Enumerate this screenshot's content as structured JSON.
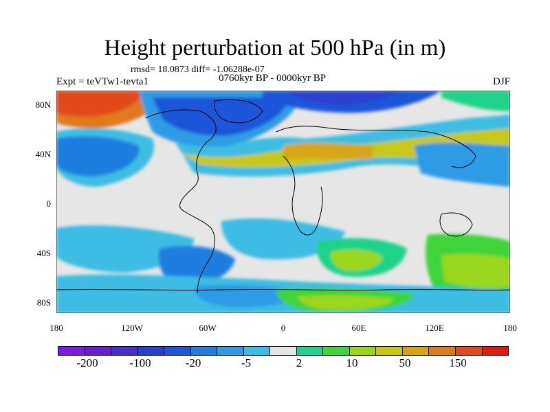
{
  "title": "Height perturbation at 500 hPa (in m)",
  "stats": "rmsd= 18.0873 diff= -1.06288e-07",
  "experiment": "Expt = teVTw1-tevta1",
  "period": "0760kyr BP - 0000kyr BP",
  "season": "DJF",
  "lat_ticks": [
    "80N",
    "40N",
    "0",
    "40S",
    "80S"
  ],
  "lon_ticks": [
    "180",
    "120W",
    "60W",
    "0",
    "60E",
    "120E",
    "180"
  ],
  "colorbar": {
    "colors": [
      "#7a1de0",
      "#6a1fd6",
      "#4a2fd0",
      "#2a3fcf",
      "#1f55d8",
      "#1f7fe0",
      "#2d9be6",
      "#3cbde3",
      "#e6e6e6",
      "#1fd38a",
      "#3fd43a",
      "#9ad61a",
      "#c8c814",
      "#d7a514",
      "#e07a1c",
      "#e24a1a",
      "#e01a14"
    ],
    "labels": [
      "-200",
      "-100",
      "-20",
      "-5",
      "2",
      "10",
      "50",
      "150"
    ]
  }
}
